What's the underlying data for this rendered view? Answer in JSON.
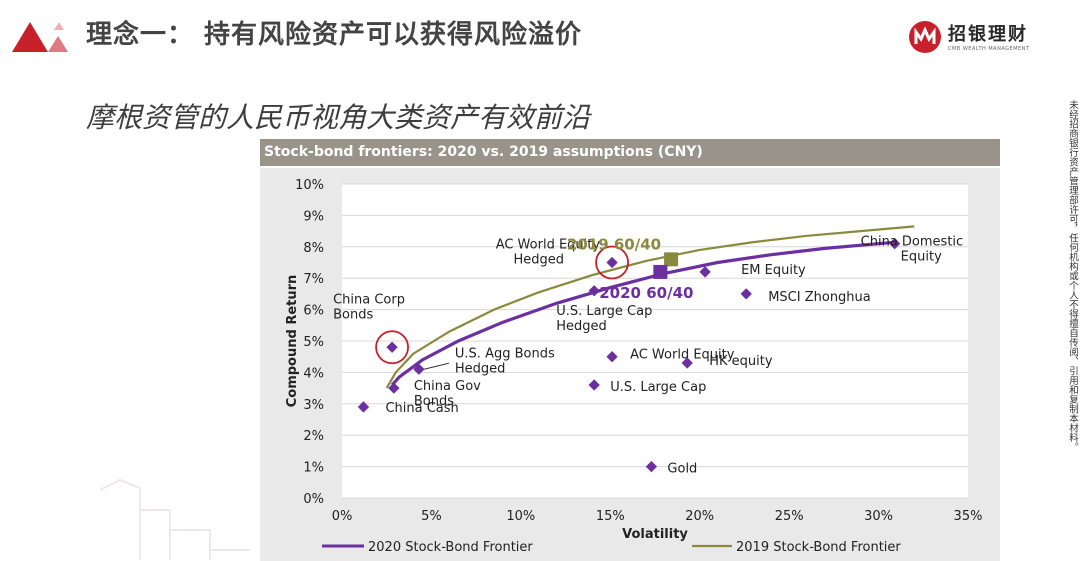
{
  "slide": {
    "title": "理念一： 持有风险资产可以获得风险溢价",
    "subtitle": "摩根资管的人民币视角大类资产有效前沿",
    "brand_name": "招银理财",
    "brand_sub": "CMB WEALTH MANAGEMENT",
    "side_note": "未经招商银行资产管理部许可，任何机构或个人不得擅自传阅、引用和复制本材料。"
  },
  "colors": {
    "accent_red": "#c8202b",
    "frontier_2020": "#6b2fa0",
    "frontier_2019": "#8a8a3e",
    "point": "#6b2fa0",
    "header_bg": "#9a938a",
    "plot_bg": "#e9e9e9"
  },
  "chart_data": {
    "type": "scatter",
    "title": "Stock-bond frontiers:  2020 vs. 2019 assumptions (CNY)",
    "xlabel": "Volatility",
    "ylabel": "Compound Return",
    "xlim": [
      0,
      35
    ],
    "ylim": [
      0,
      10
    ],
    "x_ticks": [
      "0%",
      "5%",
      "10%",
      "15%",
      "20%",
      "25%",
      "30%",
      "35%"
    ],
    "y_ticks": [
      "0%",
      "1%",
      "2%",
      "3%",
      "4%",
      "5%",
      "6%",
      "7%",
      "8%",
      "9%",
      "10%"
    ],
    "grid": true,
    "legend_position": "bottom",
    "points": [
      {
        "label": "China Cash",
        "x": 1.2,
        "y": 2.9
      },
      {
        "label": "China Gov Bonds",
        "x": 2.9,
        "y": 3.5
      },
      {
        "label": "China Corp Bonds",
        "x": 2.8,
        "y": 4.8,
        "highlight": true
      },
      {
        "label": "U.S. Agg Bonds Hedged",
        "x": 4.3,
        "y": 4.1
      },
      {
        "label": "U.S. Large Cap Hedged",
        "x": 14.1,
        "y": 6.6
      },
      {
        "label": "AC World Equity Hedged",
        "x": 15.1,
        "y": 7.5,
        "highlight": true
      },
      {
        "label": "AC World Equity",
        "x": 15.1,
        "y": 4.5
      },
      {
        "label": "U.S. Large Cap",
        "x": 14.1,
        "y": 3.6
      },
      {
        "label": "HK equity",
        "x": 19.3,
        "y": 4.3
      },
      {
        "label": "EM Equity",
        "x": 20.3,
        "y": 7.2
      },
      {
        "label": "MSCI Zhonghua",
        "x": 22.6,
        "y": 6.5
      },
      {
        "label": "China Domestic Equity",
        "x": 30.9,
        "y": 8.1
      },
      {
        "label": "Gold",
        "x": 17.3,
        "y": 1.0
      }
    ],
    "portfolios": [
      {
        "label": "2019 60/40",
        "x": 18.4,
        "y": 7.6
      },
      {
        "label": "2020 60/40",
        "x": 17.8,
        "y": 7.2
      }
    ],
    "series": [
      {
        "name": "2020 Stock-Bond Frontier",
        "x": [
          2.8,
          3.2,
          4.5,
          6.5,
          9,
          12,
          15,
          18,
          21,
          24,
          27,
          30,
          31
        ],
        "y": [
          3.6,
          3.85,
          4.4,
          5.0,
          5.6,
          6.2,
          6.7,
          7.15,
          7.5,
          7.75,
          7.95,
          8.1,
          8.15
        ]
      },
      {
        "name": "2019 Stock-Bond Frontier",
        "x": [
          2.5,
          3.0,
          4.0,
          6,
          8.5,
          11,
          14,
          17,
          20,
          23,
          26,
          29,
          32
        ],
        "y": [
          3.5,
          4.0,
          4.6,
          5.3,
          6.0,
          6.55,
          7.1,
          7.55,
          7.9,
          8.15,
          8.35,
          8.5,
          8.65
        ]
      }
    ]
  }
}
